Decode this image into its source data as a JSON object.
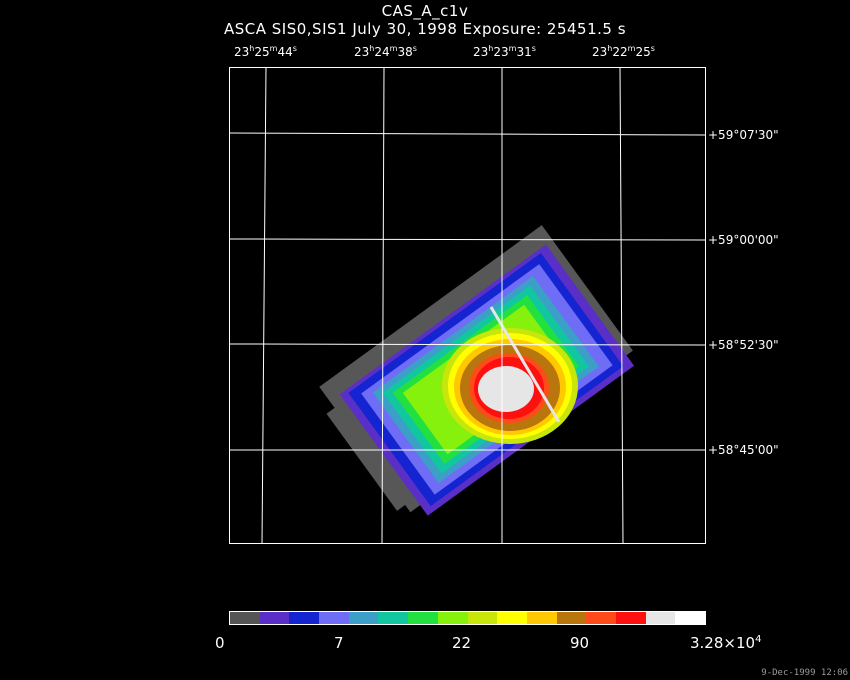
{
  "title": "CAS_A_c1v",
  "subtitle": "ASCA SIS0,SIS1 July 30, 1998 Exposure: 25451.5 s",
  "ra_labels": [
    {
      "h": "23",
      "m": "25",
      "s": "44"
    },
    {
      "h": "23",
      "m": "24",
      "s": "38"
    },
    {
      "h": "23",
      "m": "23",
      "s": "31"
    },
    {
      "h": "23",
      "m": "22",
      "s": "25"
    }
  ],
  "dec_labels": [
    "+59°07'30\"",
    "+59°00'00\"",
    "+58°52'30\"",
    "+58°45'00\""
  ],
  "colorbar": {
    "colors": [
      "#555555",
      "#5a2fc7",
      "#1424d0",
      "#6f6cf5",
      "#3c9fc8",
      "#12c7a0",
      "#22e040",
      "#86f10c",
      "#c8e60a",
      "#ffff00",
      "#ffc800",
      "#b8760c",
      "#ff4a1a",
      "#ff1010",
      "#e6e6e6",
      "#ffffff"
    ],
    "labels": [
      "0",
      "7",
      "22",
      "90"
    ],
    "max_label": {
      "mantissa": "3.28×10",
      "exp": "4"
    }
  },
  "timestamp": "9-Dec-1999 12:06"
}
